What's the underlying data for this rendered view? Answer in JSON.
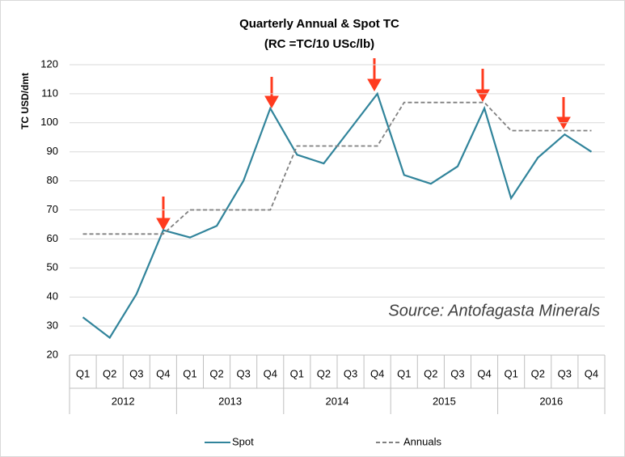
{
  "chart_data": {
    "type": "line",
    "title": "Quarterly Annual & Spot TC",
    "subtitle": "(RC =TC/10 USc/lb)",
    "y_label": "TC USD/dmt",
    "annotation": "Source:  Antofagasta Minerals",
    "categories": [
      "Q1",
      "Q2",
      "Q3",
      "Q4",
      "Q1",
      "Q2",
      "Q3",
      "Q4",
      "Q1",
      "Q2",
      "Q3",
      "Q4",
      "Q1",
      "Q2",
      "Q3",
      "Q4",
      "Q1",
      "Q2",
      "Q3",
      "Q4"
    ],
    "category_groups": [
      "2012",
      "2013",
      "2014",
      "2015",
      "2016"
    ],
    "series": [
      {
        "name": "Spot",
        "color": "#31849b",
        "dashed": false,
        "values": [
          33,
          26,
          41,
          63,
          60.5,
          64.5,
          80,
          105,
          89,
          86,
          98,
          110,
          82,
          79,
          85,
          105,
          74,
          88,
          96,
          90
        ]
      },
      {
        "name": "Annuals",
        "color": "#808080",
        "dashed": true,
        "values": [
          61.7,
          61.7,
          61.7,
          61.7,
          70,
          70,
          70,
          70,
          92,
          92,
          92,
          92,
          107,
          107,
          107,
          107,
          97.3,
          97.3,
          97.3,
          97.3
        ]
      }
    ],
    "ylim": [
      20,
      120
    ],
    "yticks": [
      20,
      30,
      40,
      50,
      60,
      70,
      80,
      90,
      100,
      110,
      120
    ],
    "grid": true,
    "legend": "bottom"
  }
}
